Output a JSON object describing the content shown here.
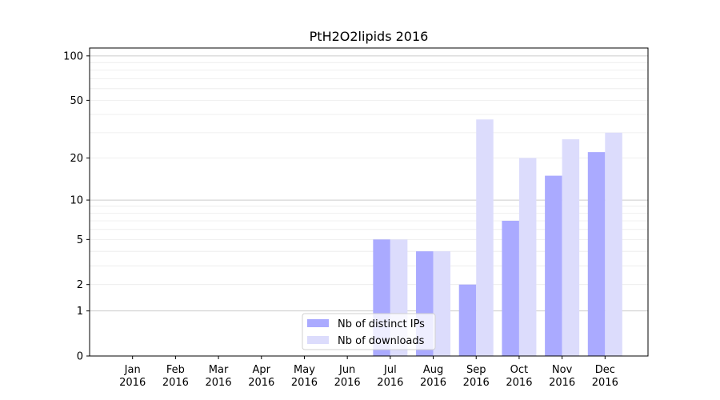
{
  "chart_data": {
    "type": "bar",
    "title": "PtH2O2lipids 2016",
    "categories": [
      "Jan 2016",
      "Feb 2016",
      "Mar 2016",
      "Apr 2016",
      "May 2016",
      "Jun 2016",
      "Jul 2016",
      "Aug 2016",
      "Sep 2016",
      "Oct 2016",
      "Nov 2016",
      "Dec 2016"
    ],
    "series": [
      {
        "name": "Nb of distinct IPs",
        "color": "#aaaaff",
        "values": [
          0,
          0,
          0,
          0,
          0,
          0,
          5,
          4,
          2,
          7,
          15,
          22
        ]
      },
      {
        "name": "Nb of downloads",
        "color": "#dcdcfc",
        "values": [
          0,
          0,
          0,
          0,
          0,
          0,
          5,
          4,
          37,
          20,
          27,
          30
        ]
      }
    ],
    "y_scale": "log1p",
    "ylim": [
      0,
      113
    ],
    "yticks": [
      0,
      1,
      2,
      5,
      10,
      20,
      50,
      100
    ],
    "minor_yticks": [
      2,
      3,
      4,
      5,
      6,
      7,
      8,
      9,
      20,
      30,
      40,
      50,
      60,
      70,
      80,
      90
    ],
    "grid": true,
    "legend": "lower center"
  }
}
